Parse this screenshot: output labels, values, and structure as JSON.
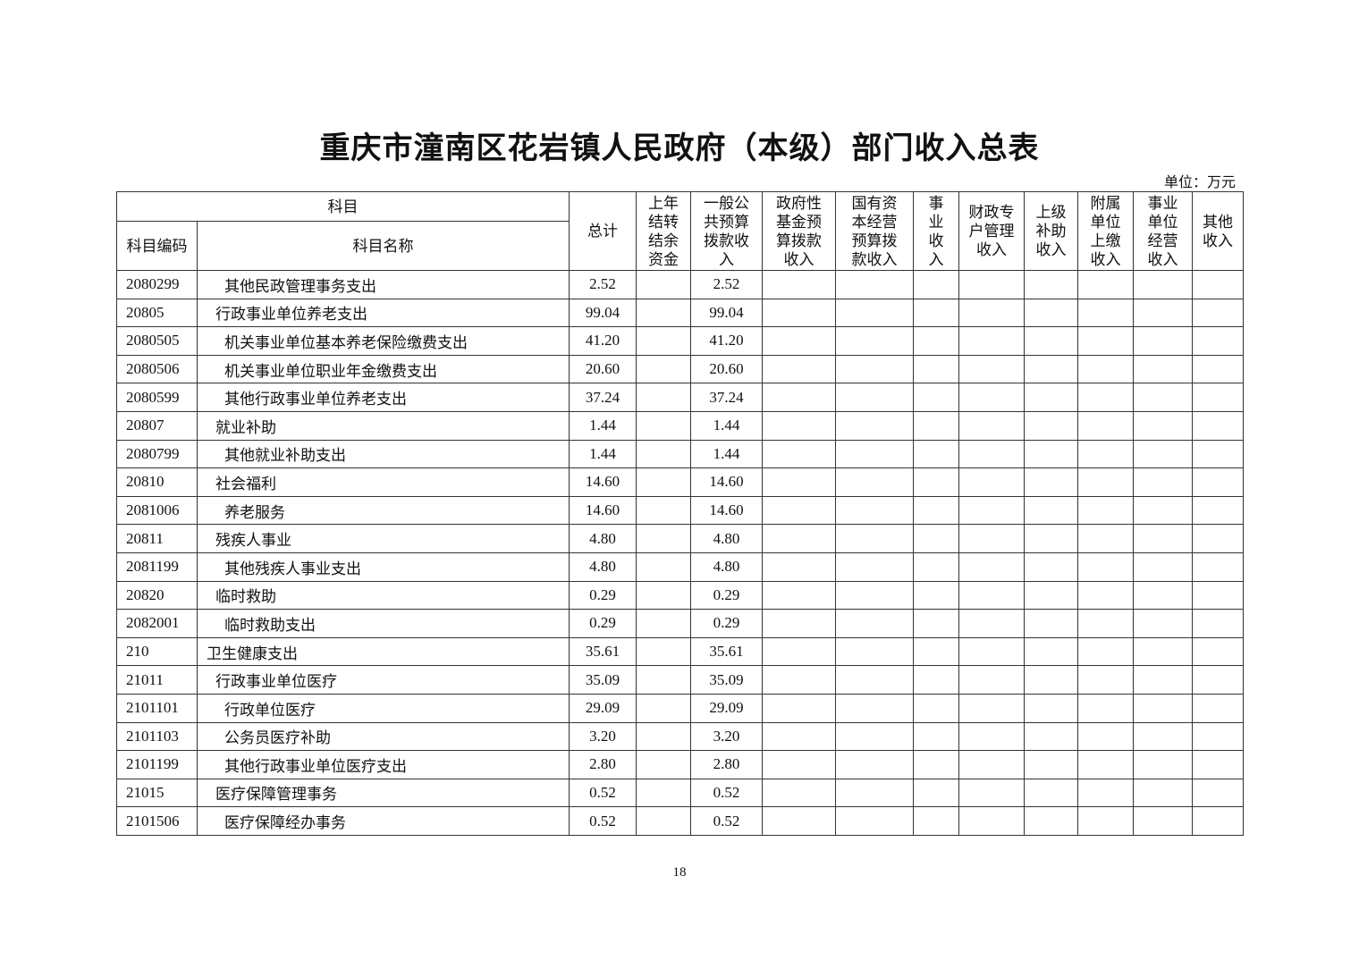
{
  "title": "重庆市潼南区花岩镇人民政府（本级）部门收入总表",
  "unit": "单位：万元",
  "header": {
    "subject_group": "科目",
    "code": "科目编码",
    "name": "科目名称",
    "columns": [
      "总计",
      "上年结转结余资金",
      "一般公共预算拨款收入",
      "政府性基金预算拨款收入",
      "国有资本经营预算拨款收入",
      "事业收入",
      "财政专户管理收入",
      "上级补助收入",
      "附属单位上缴收入",
      "事业单位经营收入",
      "其他收入"
    ]
  },
  "rows": [
    {
      "code": "2080299",
      "name": "其他民政管理事务支出",
      "total": "2.52",
      "general": "2.52"
    },
    {
      "code": "20805",
      "name": "行政事业单位养老支出",
      "total": "99.04",
      "general": "99.04"
    },
    {
      "code": "2080505",
      "name": "机关事业单位基本养老保险缴费支出",
      "total": "41.20",
      "general": "41.20"
    },
    {
      "code": "2080506",
      "name": "机关事业单位职业年金缴费支出",
      "total": "20.60",
      "general": "20.60"
    },
    {
      "code": "2080599",
      "name": "其他行政事业单位养老支出",
      "total": "37.24",
      "general": "37.24"
    },
    {
      "code": "20807",
      "name": "就业补助",
      "total": "1.44",
      "general": "1.44"
    },
    {
      "code": "2080799",
      "name": "其他就业补助支出",
      "total": "1.44",
      "general": "1.44"
    },
    {
      "code": "20810",
      "name": "社会福利",
      "total": "14.60",
      "general": "14.60"
    },
    {
      "code": "2081006",
      "name": "养老服务",
      "total": "14.60",
      "general": "14.60"
    },
    {
      "code": "20811",
      "name": "残疾人事业",
      "total": "4.80",
      "general": "4.80"
    },
    {
      "code": "2081199",
      "name": "其他残疾人事业支出",
      "total": "4.80",
      "general": "4.80"
    },
    {
      "code": "20820",
      "name": "临时救助",
      "total": "0.29",
      "general": "0.29"
    },
    {
      "code": "2082001",
      "name": "临时救助支出",
      "total": "0.29",
      "general": "0.29"
    },
    {
      "code": "210",
      "name": "卫生健康支出",
      "total": "35.61",
      "general": "35.61"
    },
    {
      "code": "21011",
      "name": "行政事业单位医疗",
      "total": "35.09",
      "general": "35.09"
    },
    {
      "code": "2101101",
      "name": "行政单位医疗",
      "total": "29.09",
      "general": "29.09"
    },
    {
      "code": "2101103",
      "name": "公务员医疗补助",
      "total": "3.20",
      "general": "3.20"
    },
    {
      "code": "2101199",
      "name": "其他行政事业单位医疗支出",
      "total": "2.80",
      "general": "2.80"
    },
    {
      "code": "21015",
      "name": "医疗保障管理事务",
      "total": "0.52",
      "general": "0.52"
    },
    {
      "code": "2101506",
      "name": "医疗保障经办事务",
      "total": "0.52",
      "general": "0.52"
    }
  ],
  "page_number": "18"
}
